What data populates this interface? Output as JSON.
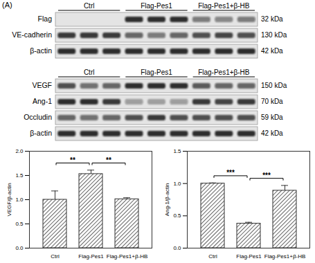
{
  "panel_label": "(A)",
  "blots": [
    {
      "groups": [
        "Ctrl",
        "Flag-Pes1",
        "Flag-Pes1+β-HB"
      ],
      "rows": [
        {
          "label": "Flag",
          "size": "32 kDa",
          "intensity": [
            0,
            0,
            0,
            0.85,
            0.85,
            0.85,
            0.5,
            0.45,
            0.5
          ]
        },
        {
          "label": "VE-cadherin",
          "size": "130 kDa",
          "intensity": [
            0.8,
            0.8,
            0.8,
            0.6,
            0.5,
            0.6,
            0.7,
            0.75,
            0.7
          ]
        },
        {
          "label": "β-actin",
          "size": "42 kDa",
          "intensity": [
            0.85,
            0.85,
            0.85,
            0.85,
            0.85,
            0.85,
            0.85,
            0.85,
            0.85
          ]
        }
      ]
    },
    {
      "groups": [
        "Ctrl",
        "Flag-Pes1",
        "Flag-Pes1+β-HB"
      ],
      "rows": [
        {
          "label": "VEGF",
          "size": "150 kDa",
          "intensity": [
            0.7,
            0.55,
            0.6,
            0.85,
            0.85,
            0.85,
            0.65,
            0.6,
            0.6
          ]
        },
        {
          "label": "Ang-1",
          "size": "70 kDa",
          "intensity": [
            0.85,
            0.85,
            0.8,
            0.35,
            0.3,
            0.35,
            0.8,
            0.75,
            0.8
          ]
        },
        {
          "label": "Occludin",
          "size": "59 kDa",
          "intensity": [
            0.6,
            0.55,
            0.6,
            0.7,
            0.8,
            0.7,
            0.7,
            0.7,
            0.7
          ]
        },
        {
          "label": "β-actin",
          "size": "42 kDa",
          "intensity": [
            0.85,
            0.85,
            0.85,
            0.85,
            0.85,
            0.85,
            0.85,
            0.85,
            0.85
          ]
        }
      ]
    }
  ],
  "chart_data": [
    {
      "type": "bar",
      "y_label": "VEGF/β-actin",
      "categories": [
        "Ctrl",
        "Flag-Pes1",
        "Flag-Pes1+β-HB"
      ],
      "values": [
        1.0,
        1.53,
        1.01
      ],
      "errors": [
        0.18,
        0.08,
        0.03
      ],
      "color": "#333333",
      "ylim": [
        0,
        2
      ],
      "yticks": [
        {
          "value": 0,
          "label": "0.0"
        },
        {
          "value": 0.5,
          "label": "0.5"
        },
        {
          "value": 1,
          "label": "1.0"
        },
        {
          "value": 1.5,
          "label": "1.5"
        },
        {
          "value": 2,
          "label": "2.0"
        }
      ],
      "comparisons": [
        {
          "groups": [
            "Ctrl",
            "Flag-Pes1"
          ],
          "label": "**"
        },
        {
          "groups": [
            "Flag-Pes1",
            "Flag-Pes1+β-HB"
          ],
          "label": "**"
        }
      ]
    },
    {
      "type": "bar",
      "y_label": "Ang-1/β-actin",
      "categories": [
        "Ctrl",
        "Flag-Pes1",
        "Flag-Pes1+β-HB"
      ],
      "values": [
        1.0,
        0.38,
        0.89
      ],
      "errors": [
        0.01,
        0.02,
        0.08
      ],
      "color": "#333333",
      "ylim": [
        0,
        1.5
      ],
      "yticks": [
        {
          "value": 0,
          "label": "0.0"
        },
        {
          "value": 0.5,
          "label": "0.5"
        },
        {
          "value": 1,
          "label": "1.0"
        },
        {
          "value": 1.5,
          "label": "1.5"
        }
      ],
      "comparisons": [
        {
          "groups": [
            "Ctrl",
            "Flag-Pes1"
          ],
          "label": "***"
        },
        {
          "groups": [
            "Flag-Pes1",
            "Flag-Pes1+β-HB"
          ],
          "label": "***"
        }
      ]
    }
  ]
}
